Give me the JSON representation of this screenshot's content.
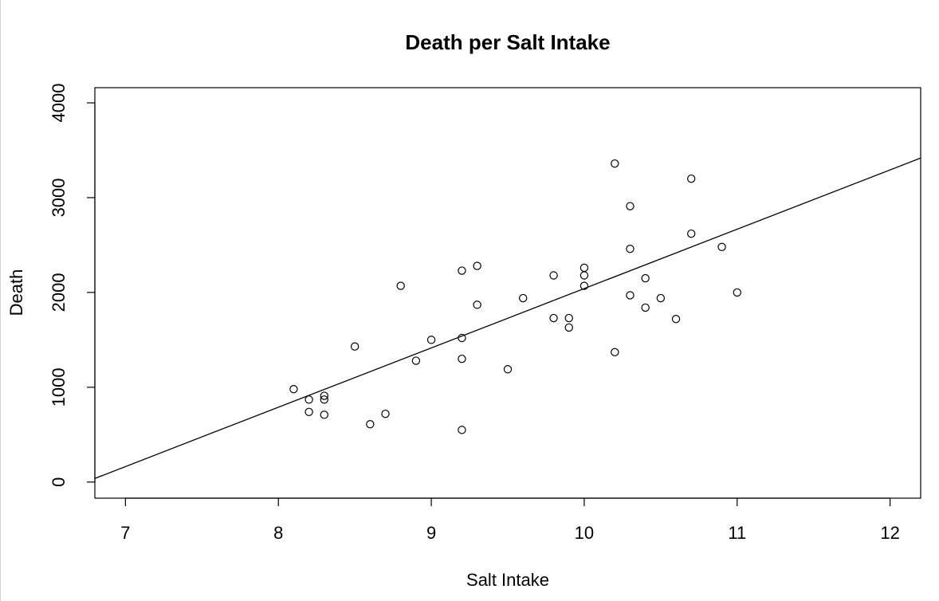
{
  "chart_data": {
    "type": "scatter",
    "title": "Death per Salt Intake",
    "xlabel": "Salt Intake",
    "ylabel": "Death",
    "xlim": [
      6.8,
      12.2
    ],
    "ylim": [
      -170,
      4160
    ],
    "x_ticks": [
      "7",
      "8",
      "9",
      "10",
      "11",
      "12"
    ],
    "y_ticks": [
      "0",
      "1000",
      "2000",
      "3000",
      "4000"
    ],
    "points": [
      {
        "x": 8.1,
        "y": 980
      },
      {
        "x": 8.2,
        "y": 870
      },
      {
        "x": 8.2,
        "y": 740
      },
      {
        "x": 8.3,
        "y": 910
      },
      {
        "x": 8.3,
        "y": 870
      },
      {
        "x": 8.3,
        "y": 710
      },
      {
        "x": 8.5,
        "y": 1430
      },
      {
        "x": 8.6,
        "y": 610
      },
      {
        "x": 8.7,
        "y": 720
      },
      {
        "x": 8.8,
        "y": 2070
      },
      {
        "x": 8.9,
        "y": 1280
      },
      {
        "x": 9.0,
        "y": 1500
      },
      {
        "x": 9.2,
        "y": 2230
      },
      {
        "x": 9.2,
        "y": 1520
      },
      {
        "x": 9.2,
        "y": 1300
      },
      {
        "x": 9.2,
        "y": 550
      },
      {
        "x": 9.3,
        "y": 2280
      },
      {
        "x": 9.3,
        "y": 1870
      },
      {
        "x": 9.5,
        "y": 1190
      },
      {
        "x": 9.6,
        "y": 1940
      },
      {
        "x": 9.8,
        "y": 2180
      },
      {
        "x": 9.8,
        "y": 1730
      },
      {
        "x": 9.9,
        "y": 1730
      },
      {
        "x": 9.9,
        "y": 1630
      },
      {
        "x": 10.0,
        "y": 2260
      },
      {
        "x": 10.0,
        "y": 2180
      },
      {
        "x": 10.0,
        "y": 2070
      },
      {
        "x": 10.2,
        "y": 3360
      },
      {
        "x": 10.2,
        "y": 1370
      },
      {
        "x": 10.3,
        "y": 2910
      },
      {
        "x": 10.3,
        "y": 2460
      },
      {
        "x": 10.3,
        "y": 1970
      },
      {
        "x": 10.4,
        "y": 2150
      },
      {
        "x": 10.4,
        "y": 1840
      },
      {
        "x": 10.5,
        "y": 1940
      },
      {
        "x": 10.6,
        "y": 1720
      },
      {
        "x": 10.7,
        "y": 3200
      },
      {
        "x": 10.7,
        "y": 2620
      },
      {
        "x": 10.9,
        "y": 2480
      },
      {
        "x": 11.0,
        "y": 2000
      }
    ],
    "regression_line": {
      "intercept": -4218,
      "slope": 625.9
    },
    "grid": false,
    "legend": "none"
  }
}
